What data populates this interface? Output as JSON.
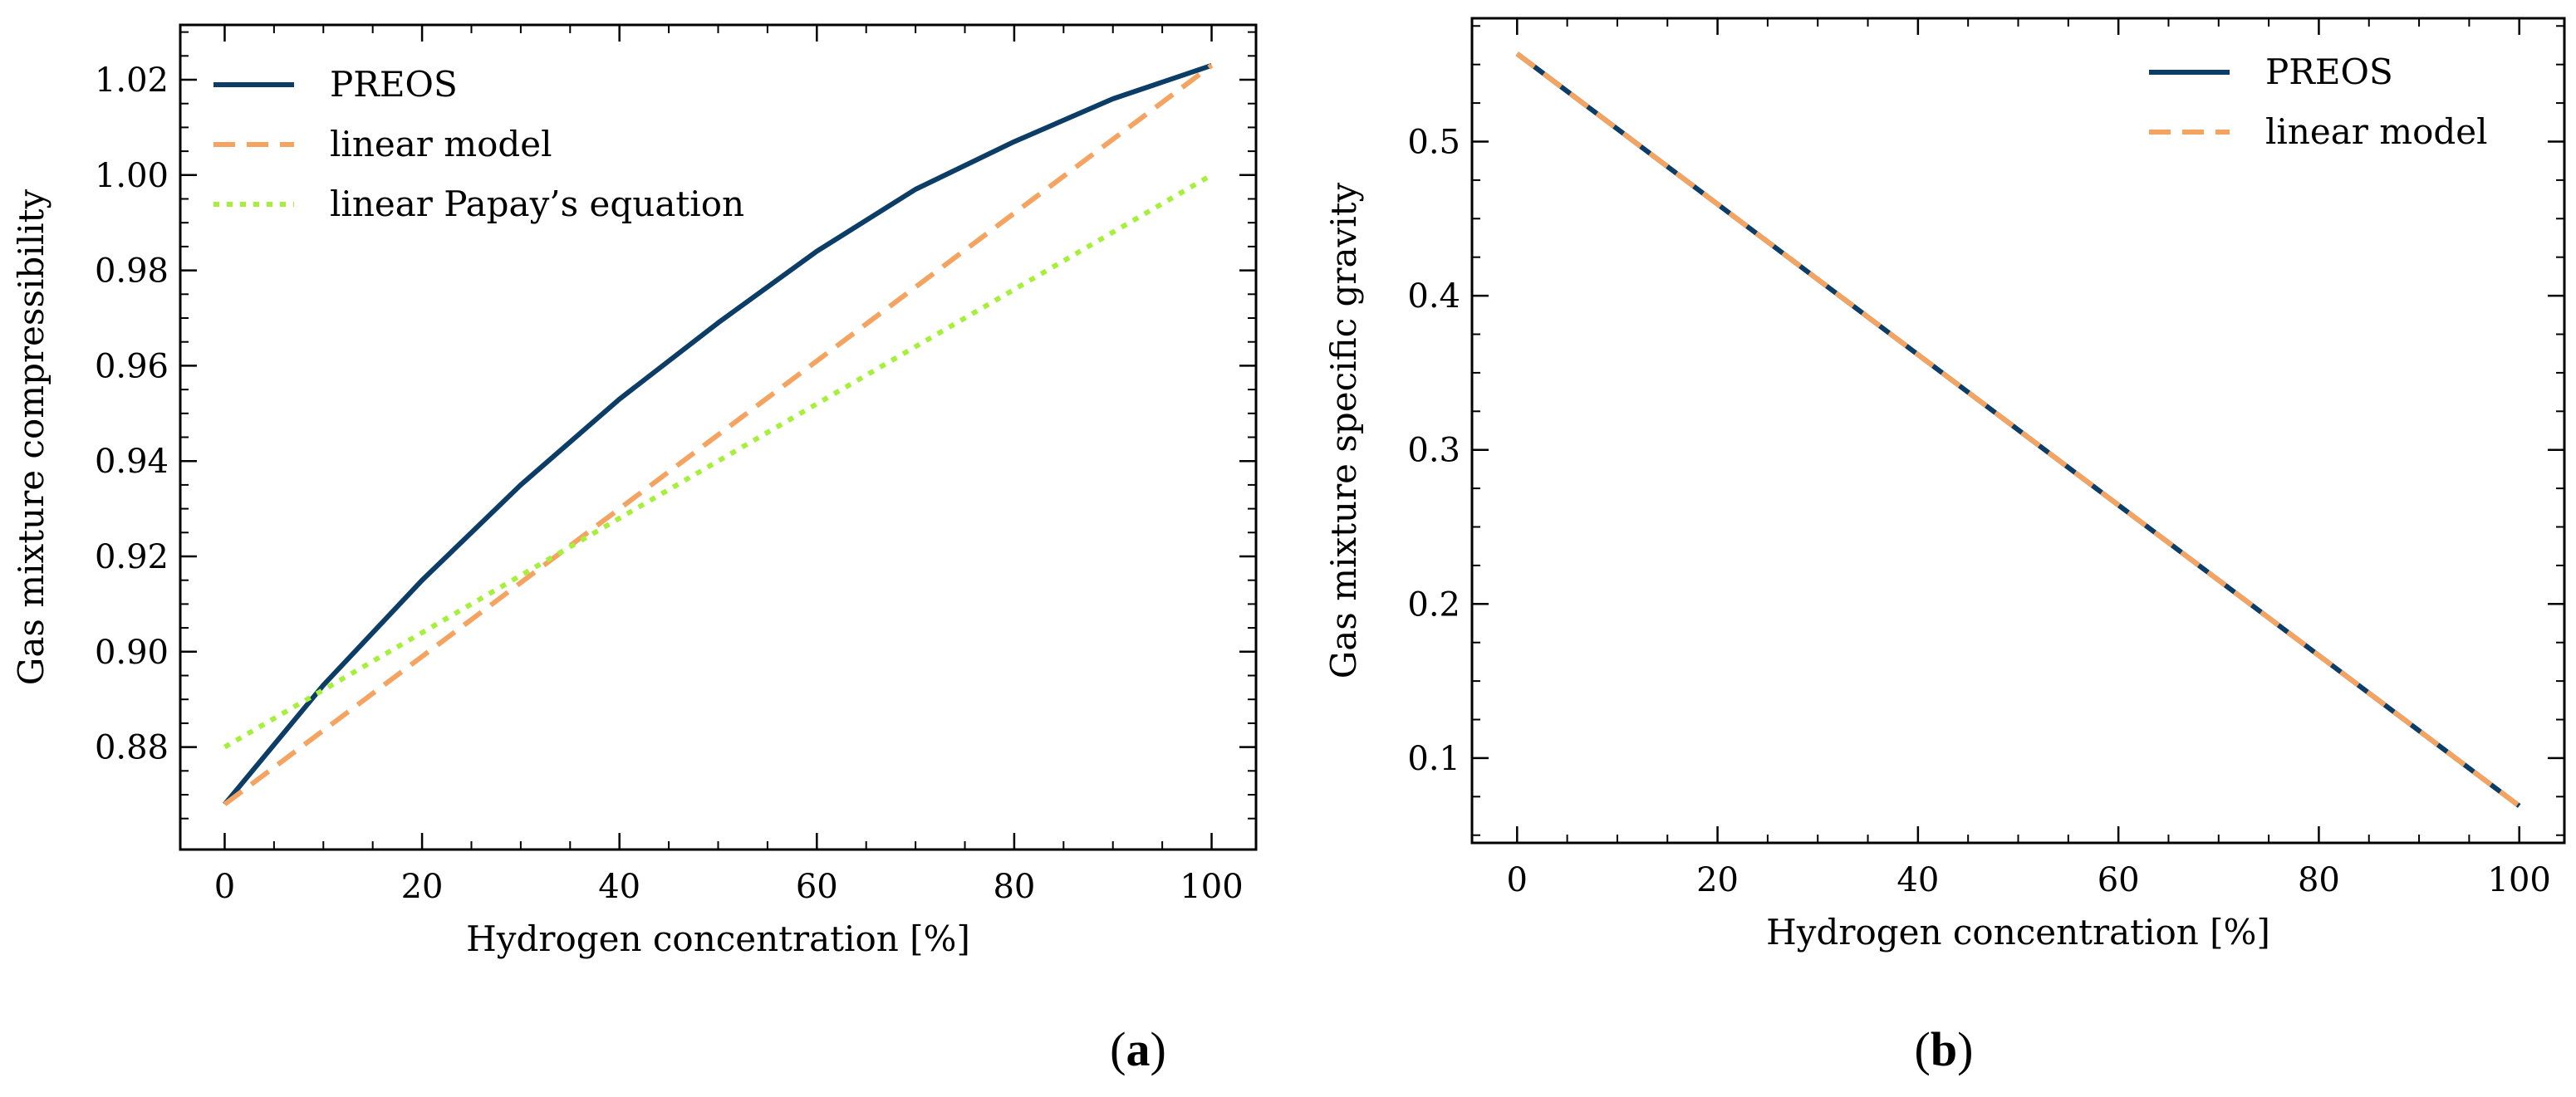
{
  "chart_data": [
    {
      "type": "line",
      "panel_label": "(a)",
      "panel_letter": "a",
      "xlabel": "Hydrogen concentration [%]",
      "ylabel": "Gas mixture compressibility",
      "xlim": [
        -4.5,
        104.5
      ],
      "ylim": [
        0.8585,
        1.0315
      ],
      "xticks": [
        0,
        20,
        40,
        60,
        80,
        100
      ],
      "xtick_labels": [
        "0",
        "20",
        "40",
        "60",
        "80",
        "100"
      ],
      "yticks": [
        0.88,
        0.9,
        0.92,
        0.94,
        0.96,
        0.98,
        1.0,
        1.02
      ],
      "ytick_labels": [
        "0.88",
        "0.90",
        "0.92",
        "0.94",
        "0.96",
        "0.98",
        "1.00",
        "1.02"
      ],
      "legend_position": "top-left",
      "series": [
        {
          "name": "PREOS",
          "style": "solid",
          "color": "#0b3d66",
          "x": [
            0,
            10,
            20,
            30,
            40,
            50,
            60,
            70,
            80,
            90,
            100
          ],
          "y": [
            0.868,
            0.893,
            0.915,
            0.935,
            0.953,
            0.969,
            0.984,
            0.997,
            1.007,
            1.016,
            1.023
          ]
        },
        {
          "name": "linear model",
          "style": "dashed",
          "color": "#f4a460",
          "x": [
            0,
            100
          ],
          "y": [
            0.868,
            1.023
          ]
        },
        {
          "name": "linear Papay’s equation",
          "style": "dotted",
          "color": "#a6f03c",
          "x": [
            0,
            100
          ],
          "y": [
            0.88,
            1.0
          ]
        }
      ]
    },
    {
      "type": "line",
      "panel_label": "(b)",
      "panel_letter": "b",
      "xlabel": "Hydrogen concentration [%]",
      "ylabel": "Gas mixture specific gravity",
      "xlim": [
        -4.5,
        104.5
      ],
      "ylim": [
        0.045,
        0.58
      ],
      "xticks": [
        0,
        20,
        40,
        60,
        80,
        100
      ],
      "xtick_labels": [
        "0",
        "20",
        "40",
        "60",
        "80",
        "100"
      ],
      "yticks": [
        0.1,
        0.2,
        0.3,
        0.4,
        0.5
      ],
      "ytick_labels": [
        "0.1",
        "0.2",
        "0.3",
        "0.4",
        "0.5"
      ],
      "legend_position": "top-right",
      "series": [
        {
          "name": "PREOS",
          "style": "solid",
          "color": "#0b3d66",
          "x": [
            0,
            100
          ],
          "y": [
            0.557,
            0.069
          ]
        },
        {
          "name": "linear model",
          "style": "dashed",
          "color": "#f4a460",
          "x": [
            0,
            100
          ],
          "y": [
            0.557,
            0.069
          ]
        }
      ]
    }
  ]
}
